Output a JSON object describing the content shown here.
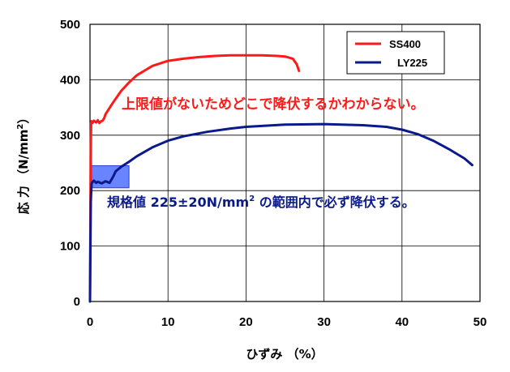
{
  "chart_data": {
    "type": "line",
    "xlabel": "ひずみ （%）",
    "ylabel_prefix": "応 力 （N/mm",
    "ylabel_sup": "2",
    "ylabel_suffix": "）",
    "xlim": [
      0,
      50
    ],
    "ylim": [
      0,
      500
    ],
    "xticks": [
      0,
      10,
      20,
      30,
      40,
      50
    ],
    "yticks": [
      0,
      100,
      200,
      300,
      400,
      500
    ],
    "grid": true,
    "legend_position": "top-right",
    "series": [
      {
        "name": "SS400",
        "color": "#ff1a1a",
        "x": [
          0,
          0.05,
          0.1,
          0.15,
          0.2,
          0.3,
          0.5,
          0.8,
          1.0,
          1.2,
          1.4,
          1.6,
          1.8,
          2,
          3,
          4,
          5,
          6,
          8,
          10,
          12,
          14,
          16,
          18,
          20,
          22,
          24,
          25,
          26,
          26.5,
          26.8
        ],
        "y": [
          0,
          150,
          280,
          322,
          325,
          322,
          326,
          323,
          327,
          322,
          325,
          326,
          330,
          338,
          360,
          380,
          395,
          408,
          425,
          434,
          438,
          441,
          443,
          444,
          444,
          444,
          443,
          442,
          438,
          428,
          416
        ]
      },
      {
        "name": "LY225",
        "color": "#0a1a8a",
        "x": [
          0,
          0.05,
          0.1,
          0.2,
          0.3,
          0.5,
          0.8,
          1.0,
          1.5,
          2.0,
          2.5,
          3.0,
          3.3,
          4,
          5,
          6,
          8,
          10,
          12,
          15,
          18,
          20,
          25,
          30,
          35,
          38,
          40,
          42,
          44,
          46,
          48,
          49
        ],
        "y": [
          0,
          100,
          180,
          212,
          215,
          218,
          214,
          216,
          213,
          217,
          214,
          226,
          235,
          243,
          252,
          262,
          278,
          290,
          298,
          306,
          312,
          315,
          319,
          320,
          318,
          315,
          310,
          302,
          290,
          275,
          258,
          246
        ]
      }
    ],
    "annotations": {
      "upper_text": "上限値がないためどこで降伏するかわからない。",
      "lower_text_prefix": "規格値 225±20N/mm",
      "lower_text_sup": "2",
      "lower_text_suffix": " の範囲内で必ず降伏する。",
      "range_box": {
        "x": [
          0,
          5
        ],
        "y": [
          205,
          245
        ],
        "color": "#4d6fff"
      }
    }
  }
}
